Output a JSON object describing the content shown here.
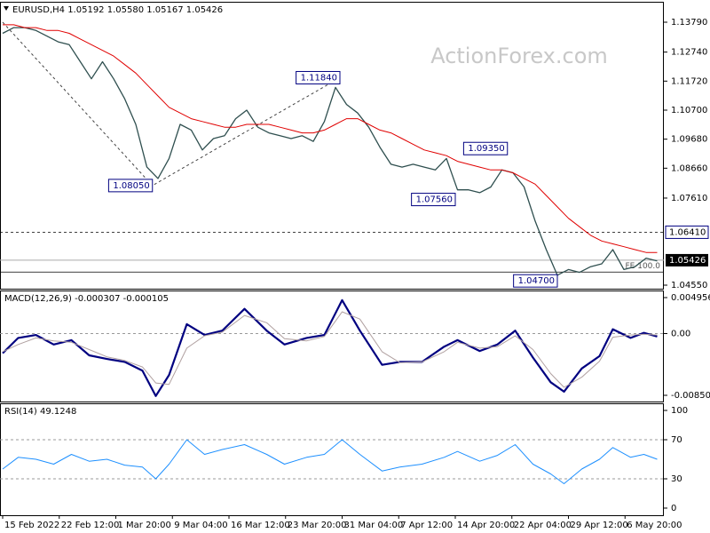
{
  "chart_data": [
    {
      "type": "line",
      "title": "EURUSD,H4  1.05192 1.05580 1.05167 1.05426",
      "watermark": "ActionForex.com",
      "x": [
        0,
        1,
        2,
        3,
        4,
        5,
        6,
        7,
        8,
        9,
        10,
        11,
        12,
        13,
        14,
        15,
        16,
        17,
        18,
        19,
        20,
        21,
        22,
        23,
        24,
        25,
        26,
        27,
        28,
        29,
        30,
        31,
        32,
        33,
        34,
        35,
        36,
        37,
        38,
        39,
        40,
        41,
        42,
        43,
        44,
        45,
        46,
        47,
        48,
        49,
        50,
        51,
        52,
        53,
        54,
        55,
        56,
        57,
        58,
        59
      ],
      "xlim": [
        -0.24,
        59.6
      ],
      "xticks": [
        {
          "value": 0,
          "label": "15 Feb 2022"
        },
        {
          "value": 5.1,
          "label": "22 Feb 12:00"
        },
        {
          "value": 10.2,
          "label": "1 Mar 20:00"
        },
        {
          "value": 15.3,
          "label": "9 Mar 04:00"
        },
        {
          "value": 20.4,
          "label": "16 Mar 12:00"
        },
        {
          "value": 25.5,
          "label": "23 Mar 20:00"
        },
        {
          "value": 30.6,
          "label": "31 Mar 04:00"
        },
        {
          "value": 35.7,
          "label": "7 Apr 12:00"
        },
        {
          "value": 40.8,
          "label": "14 Apr 20:00"
        },
        {
          "value": 45.9,
          "label": "22 Apr 04:00"
        },
        {
          "value": 51,
          "label": "29 Apr 12:00"
        },
        {
          "value": 56.1,
          "label": "6 May 20:00"
        }
      ],
      "ylim": [
        1.04425,
        1.14508
      ],
      "yticks": [
        {
          "value": 1.1379,
          "label": "1.13790"
        },
        {
          "value": 1.1274,
          "label": "1.12740"
        },
        {
          "value": 1.1172,
          "label": "1.11720"
        },
        {
          "value": 1.107,
          "label": "1.10700"
        },
        {
          "value": 1.0968,
          "label": "1.09680"
        },
        {
          "value": 1.0866,
          "label": "1.08660"
        },
        {
          "value": 1.0761,
          "label": "1.07610"
        },
        {
          "value": 1.0455,
          "label": "1.04550"
        }
      ],
      "series": [
        {
          "name": "EURUSD",
          "color": "#2f4f4f",
          "width": 1.3,
          "values": [
            1.134,
            1.136,
            1.136,
            1.135,
            1.133,
            1.131,
            1.13,
            1.124,
            1.118,
            1.124,
            1.118,
            1.111,
            1.102,
            1.087,
            1.083,
            1.09,
            1.102,
            1.1,
            1.093,
            1.097,
            1.098,
            1.104,
            1.107,
            1.101,
            1.099,
            1.098,
            1.097,
            1.098,
            1.096,
            1.103,
            1.115,
            1.109,
            1.106,
            1.101,
            1.094,
            1.088,
            1.087,
            1.088,
            1.087,
            1.086,
            1.09,
            1.079,
            1.079,
            1.078,
            1.08,
            1.086,
            1.085,
            1.08,
            1.068,
            1.058,
            1.049,
            1.051,
            1.05,
            1.052,
            1.053,
            1.058,
            1.051,
            1.052,
            1.055,
            1.054
          ]
        },
        {
          "name": "MA",
          "color": "#e00000",
          "width": 1,
          "values": [
            1.137,
            1.137,
            1.136,
            1.136,
            1.135,
            1.135,
            1.134,
            1.132,
            1.13,
            1.128,
            1.126,
            1.123,
            1.12,
            1.116,
            1.112,
            1.108,
            1.106,
            1.104,
            1.103,
            1.102,
            1.101,
            1.101,
            1.102,
            1.102,
            1.102,
            1.101,
            1.1,
            1.099,
            1.099,
            1.1,
            1.102,
            1.104,
            1.104,
            1.102,
            1.1,
            1.099,
            1.097,
            1.095,
            1.093,
            1.092,
            1.091,
            1.089,
            1.088,
            1.087,
            1.086,
            1.086,
            1.085,
            1.083,
            1.081,
            1.077,
            1.073,
            1.069,
            1.066,
            1.063,
            1.061,
            1.06,
            1.059,
            1.058,
            1.057,
            1.057
          ]
        }
      ],
      "zigzag": {
        "x": [
          0,
          13.5,
          30.4
        ],
        "values": [
          1.1379,
          1.0805,
          1.1184
        ]
      },
      "annotations": [
        {
          "label": "1.08050",
          "value": 1.0805,
          "x": 13.5
        },
        {
          "label": "1.11840",
          "value": 1.1184,
          "x": 30.4
        },
        {
          "label": "1.07560",
          "value": 1.0756,
          "x": 40.8
        },
        {
          "label": "1.09350",
          "value": 1.0935,
          "x": 45.5
        },
        {
          "label": "1.04700",
          "value": 1.047,
          "x": 50
        }
      ],
      "levels": [
        {
          "value": 1.0641,
          "label": "1.06410",
          "style": "dashed"
        },
        {
          "value": 1.0501,
          "label": "FE 100.0",
          "style": "solid"
        }
      ],
      "current": {
        "value": 1.05426,
        "label": "1.05426"
      }
    },
    {
      "type": "line",
      "title": "MACD(12,26,9) -0.000307 -0.000105",
      "x": [
        0,
        1.4,
        3,
        4.6,
        6.2,
        7.8,
        9.4,
        11,
        12.6,
        13.8,
        15,
        16.6,
        18.2,
        19.8,
        21.8,
        23.8,
        25.4,
        27.4,
        29,
        30.6,
        32.2,
        34.2,
        35.8,
        37.8,
        39.8,
        41,
        43,
        44.6,
        46.2,
        47.8,
        49.4,
        50.6,
        52.2,
        53.8,
        55,
        56.6,
        57.8,
        59
      ],
      "xlim": [
        -0.24,
        59.6
      ],
      "ylim": [
        -0.009357,
        0.005935
      ],
      "yticks": [
        0.004956,
        {
          "value": 0,
          "label": "0.00"
        },
        -0.008501
      ],
      "zero_line": true,
      "series": [
        {
          "name": "MACD",
          "color": "#000080",
          "width": 2.2,
          "values": [
            -0.0027,
            -0.0006,
            -0.0002,
            -0.0015,
            -0.0009,
            -0.003,
            -0.0035,
            -0.0039,
            -0.0051,
            -0.0086,
            -0.0057,
            0.0013,
            -0.0002,
            0.0004,
            0.0034,
            0.0004,
            -0.0015,
            -0.0006,
            -0.0002,
            0.0046,
            0.0004,
            -0.0043,
            -0.0039,
            -0.0039,
            -0.0018,
            -0.0009,
            -0.0024,
            -0.0015,
            0.0004,
            -0.0033,
            -0.0067,
            -0.008,
            -0.0048,
            -0.0031,
            0.0006,
            -0.0006,
            0.0001,
            -0.0004
          ]
        },
        {
          "name": "Signal",
          "color": "#b0a0a0",
          "width": 1,
          "values": [
            -0.0025,
            -0.0015,
            -0.0006,
            -0.001,
            -0.0012,
            -0.0022,
            -0.0032,
            -0.0037,
            -0.0046,
            -0.0068,
            -0.007,
            -0.002,
            -0.0003,
            0.0002,
            0.0025,
            0.0015,
            -0.0007,
            -0.001,
            -0.0004,
            0.003,
            0.002,
            -0.0025,
            -0.004,
            -0.0039,
            -0.0025,
            -0.0012,
            -0.002,
            -0.0018,
            -0.0003,
            -0.0022,
            -0.0055,
            -0.0074,
            -0.006,
            -0.0038,
            -0.0005,
            -0.0002,
            -0.0001,
            -0.0002
          ]
        }
      ]
    },
    {
      "type": "line",
      "title": "RSI(14) 49.1248",
      "x": [
        0,
        1.4,
        3,
        4.6,
        6.2,
        7.8,
        9.4,
        11,
        12.6,
        13.8,
        15,
        16.6,
        18.2,
        19.8,
        21.8,
        23.8,
        25.4,
        27.4,
        29,
        30.6,
        32.2,
        34.2,
        35.8,
        37.8,
        39.8,
        41,
        43,
        44.6,
        46.2,
        47.8,
        49.4,
        50.6,
        52.2,
        53.8,
        55,
        56.6,
        57.8,
        59
      ],
      "xlim": [
        -0.24,
        59.6
      ],
      "ylim": [
        -7.3,
        107.3
      ],
      "yticks": [
        100,
        70,
        30,
        0
      ],
      "dashed_ticks": [
        70,
        30
      ],
      "series": [
        {
          "name": "RSI",
          "color": "#1e90ff",
          "width": 1,
          "values": [
            40,
            52,
            50,
            45,
            55,
            48,
            50,
            44,
            42,
            30,
            45,
            70,
            55,
            60,
            65,
            55,
            45,
            52,
            55,
            70,
            55,
            38,
            42,
            45,
            52,
            58,
            48,
            54,
            65,
            45,
            35,
            25,
            40,
            50,
            62,
            52,
            55,
            50
          ]
        }
      ]
    }
  ]
}
